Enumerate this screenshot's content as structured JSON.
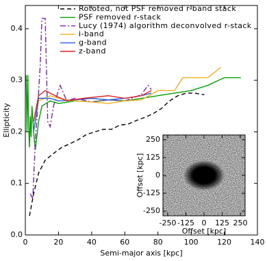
{
  "chart_data": [
    {
      "type": "line",
      "xlabel": "Semi-major axis [kpc]",
      "ylabel": "Ellipticity",
      "xlim": [
        0,
        140
      ],
      "xticks": [
        0,
        20,
        40,
        60,
        80,
        100,
        120,
        140
      ],
      "ylim": [
        0,
        0.445
      ],
      "yticks": [
        {
          "value": 0,
          "label": "0.0"
        },
        0.1,
        0.2,
        0.3,
        0.4
      ],
      "legend": "upper right",
      "series": [
        {
          "name": "Rototed, not PSF removed r-band stack",
          "color": "#000000",
          "dash": "dashed",
          "x": [
            2.5,
            5,
            8,
            12,
            17,
            22,
            27,
            32,
            37,
            42,
            47,
            52,
            57,
            62,
            67,
            72,
            77,
            82,
            87,
            92,
            97,
            102,
            108
          ],
          "values": [
            0.037,
            0.08,
            0.12,
            0.145,
            0.158,
            0.17,
            0.177,
            0.185,
            0.195,
            0.2,
            0.205,
            0.205,
            0.213,
            0.215,
            0.222,
            0.228,
            0.235,
            0.245,
            0.26,
            0.27,
            0.275,
            0.275,
            0.272
          ]
        },
        {
          "name": "PSF removed r-stack",
          "color": "#00a000",
          "dash": "solid",
          "x": [
            0.5,
            1,
            1.5,
            2,
            2.5,
            3,
            3.5,
            4,
            5,
            6,
            8,
            10,
            15,
            20,
            30,
            40,
            50,
            60,
            70,
            80,
            90,
            100,
            110,
            120,
            130
          ],
          "values": [
            0.31,
            0.2,
            0.31,
            0.21,
            0.17,
            0.23,
            0.19,
            0.25,
            0.2,
            0.165,
            0.22,
            0.25,
            0.26,
            0.255,
            0.26,
            0.258,
            0.262,
            0.26,
            0.265,
            0.27,
            0.275,
            0.28,
            0.29,
            0.305,
            0.305
          ]
        },
        {
          "name": "Lucy (1974) algorithm deconvolved r-stack",
          "color": "#8020b0",
          "dash": "dashdot",
          "x": [
            3,
            4.5,
            6,
            7.5,
            9,
            10,
            12,
            13.5,
            15,
            17,
            21,
            25,
            30,
            40,
            50,
            60,
            70,
            74,
            76
          ],
          "values": [
            0.08,
            0.07,
            0.18,
            0.25,
            0.33,
            0.42,
            0.42,
            0.22,
            0.21,
            0.25,
            0.29,
            0.26,
            0.265,
            0.258,
            0.262,
            0.26,
            0.272,
            0.29,
            0.282
          ]
        },
        {
          "name": "i-band",
          "color": "#f0b020",
          "dash": "solid",
          "x": [
            5,
            8,
            15,
            20,
            30,
            40,
            50,
            60,
            70,
            80,
            90,
            95,
            110,
            118
          ],
          "values": [
            0.2,
            0.26,
            0.27,
            0.265,
            0.26,
            0.258,
            0.255,
            0.26,
            0.262,
            0.28,
            0.28,
            0.305,
            0.305,
            0.325
          ]
        },
        {
          "name": "g-band",
          "color": "#2060e0",
          "dash": "solid",
          "x": [
            5,
            8,
            15,
            20,
            30,
            40,
            50,
            60,
            70,
            76
          ],
          "values": [
            0.2,
            0.265,
            0.265,
            0.26,
            0.262,
            0.265,
            0.262,
            0.265,
            0.27,
            0.275
          ]
        },
        {
          "name": "z-band",
          "color": "#e02020",
          "dash": "solid",
          "x": [
            5,
            8,
            12,
            18,
            25,
            35,
            50,
            60,
            70,
            76
          ],
          "values": [
            0.22,
            0.27,
            0.28,
            0.27,
            0.26,
            0.265,
            0.27,
            0.265,
            0.27,
            0.28
          ]
        }
      ]
    },
    {
      "type": "image",
      "xlabel": "Offset [kpc]",
      "ylabel": "Offset [kpc]",
      "xlim": [
        -283,
        283
      ],
      "ylim": [
        -283,
        283
      ],
      "xticks": [
        -250,
        -125,
        0,
        125,
        250
      ],
      "yticks": [
        -250,
        -125,
        0,
        125,
        250
      ]
    }
  ]
}
